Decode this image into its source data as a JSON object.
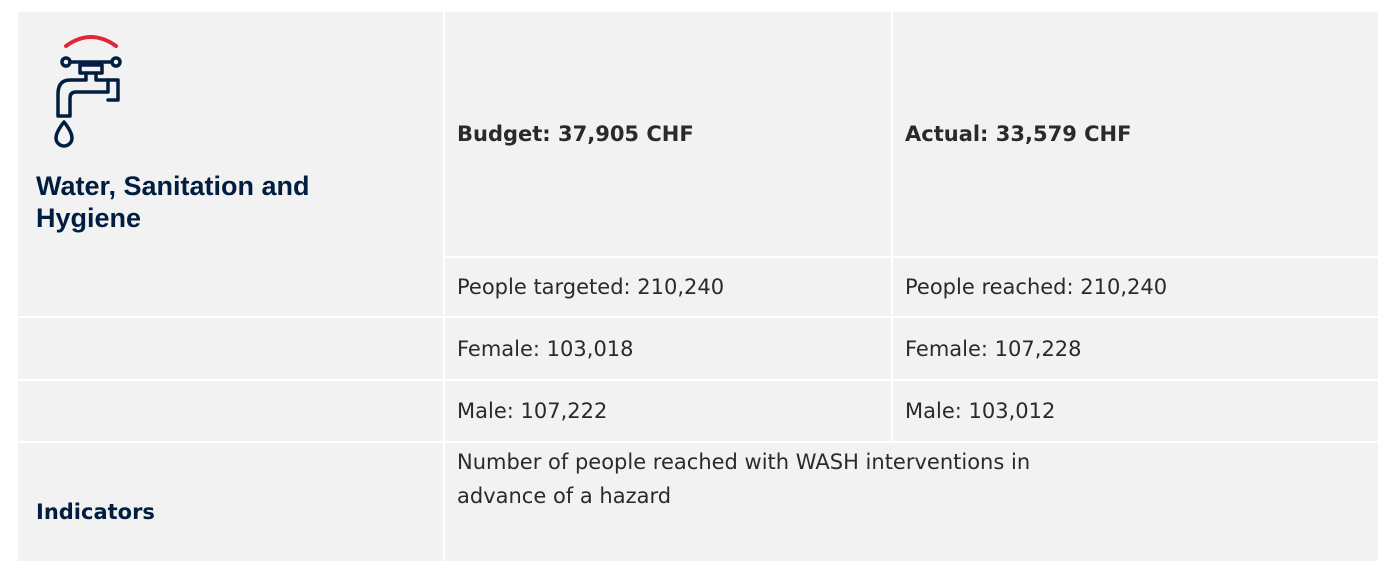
{
  "sector": {
    "title": "Water, Sanitation and Hygiene"
  },
  "budget": {
    "budget": "Budget: 37,905 CHF",
    "actual": "Actual: 33,579 CHF"
  },
  "rows": [
    [
      "People targeted: 210,240",
      "People reached: 210,240"
    ],
    [
      "Female: 103,018",
      "Female: 107,228"
    ],
    [
      "Male: 107,222",
      "Male: 103,012"
    ]
  ],
  "indicators": {
    "label": "Indicators",
    "text": "Number of people reached with WASH interventions in advance of a hazard"
  }
}
